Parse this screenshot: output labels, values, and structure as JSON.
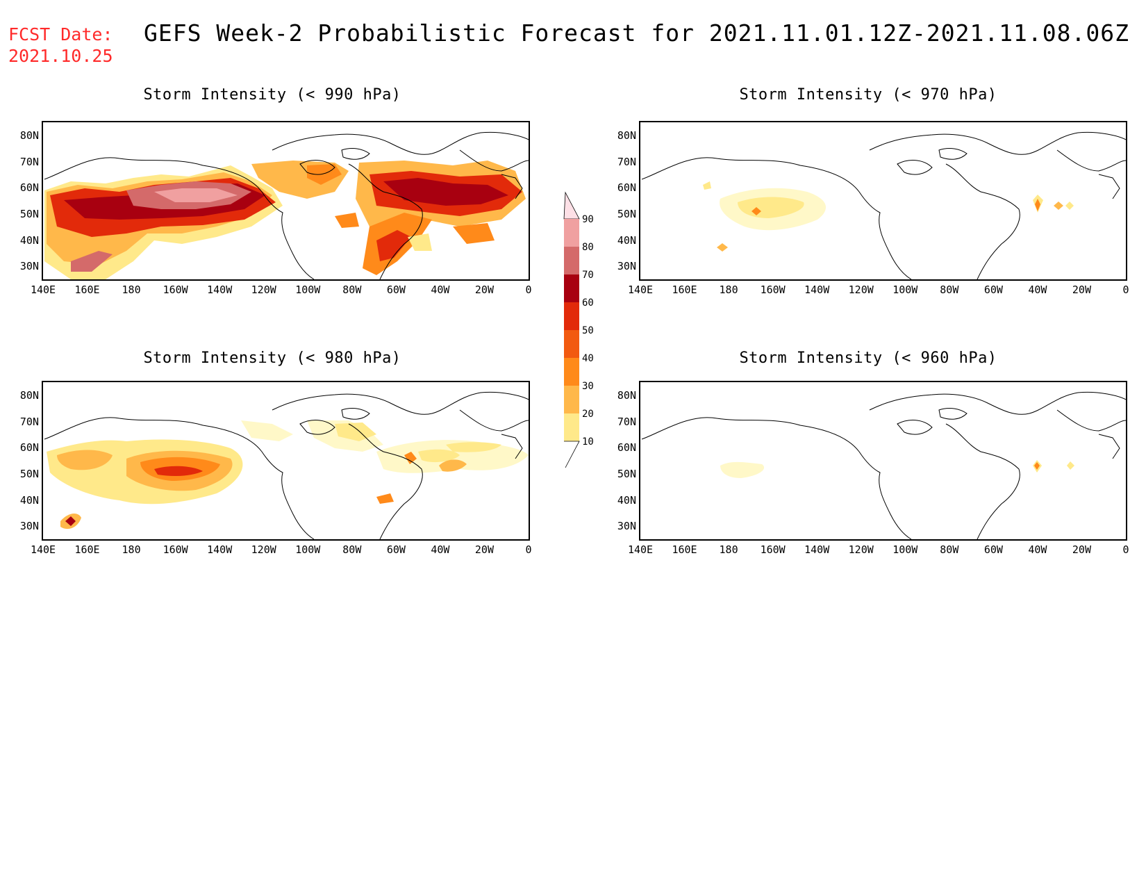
{
  "header": {
    "fcst_line1": "FCST Date:",
    "fcst_line2": "2021.10.25",
    "title": "GEFS Week-2 Probabilistic Forecast for 2021.11.01.12Z-2021.11.08.06Z"
  },
  "colors": {
    "fcst_text": "#ff2a2a",
    "levels": [
      "#fff8c8",
      "#ffe98a",
      "#ffb84a",
      "#ff8a1a",
      "#f25a10",
      "#e22a0a",
      "#a80010",
      "#d46a6a",
      "#f0a0a0",
      "#fde0e6"
    ]
  },
  "lat_labels": [
    "80N",
    "70N",
    "60N",
    "50N",
    "40N",
    "30N"
  ],
  "lon_labels": [
    "140E",
    "160E",
    "180",
    "160W",
    "140W",
    "120W",
    "100W",
    "80W",
    "60W",
    "40W",
    "20W",
    "0"
  ],
  "panels": [
    {
      "title": "Storm Intensity (< 990 hPa)"
    },
    {
      "title": "Storm Intensity (< 970 hPa)"
    },
    {
      "title": "Storm Intensity (< 980 hPa)"
    },
    {
      "title": "Storm Intensity (< 960 hPa)"
    }
  ],
  "colorbar": {
    "labels": [
      "90",
      "80",
      "70",
      "60",
      "50",
      "40",
      "30",
      "20",
      "10"
    ],
    "thresholds": [
      10,
      20,
      30,
      40,
      50,
      60,
      70,
      80,
      90
    ]
  }
}
